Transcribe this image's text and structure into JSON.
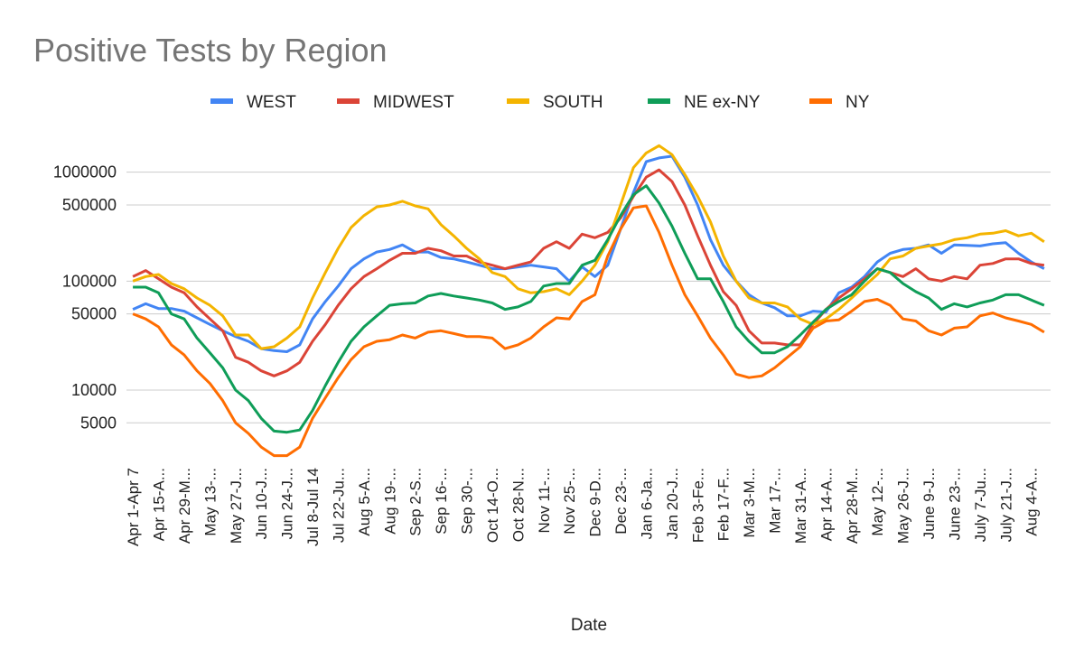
{
  "chart_data": {
    "type": "line",
    "title": "Positive Tests by Region",
    "x_label": "Date",
    "log_scale": true,
    "grid": true,
    "legend": "top",
    "categories": [
      "Apr 1-Apr 7",
      null,
      "Apr 15-A...",
      null,
      "Apr 29-M...",
      null,
      "May 13-...",
      null,
      "May 27-J...",
      null,
      "Jun 10-J...",
      null,
      "Jun 24-J...",
      null,
      "Jul 8-Jul 14",
      null,
      "Jul 22-Ju...",
      null,
      "Aug 5-A...",
      null,
      "Aug 19-...",
      null,
      "Sep 2-S...",
      null,
      "Sep 16-...",
      null,
      "Sep 30-...",
      null,
      "Oct 14-O...",
      null,
      "Oct 28-N...",
      null,
      "Nov 11-...",
      null,
      "Nov 25-...",
      null,
      "Dec 9-D...",
      null,
      "Dec 23-...",
      null,
      "Jan 6-Ja...",
      null,
      "Jan 20-J...",
      null,
      "Feb 3-Fe...",
      null,
      "Feb 17-F...",
      null,
      "Mar 3-M...",
      null,
      "Mar 17-...",
      null,
      "Mar 31-A...",
      null,
      "Apr 14-A...",
      null,
      "Apr 28-M...",
      null,
      "May 12-...",
      null,
      "May 26-J...",
      null,
      "June 9-J...",
      null,
      "June 23-...",
      null,
      "July 7-Ju...",
      null,
      "July 21-J...",
      null,
      "Aug 4-A...",
      null
    ],
    "ylim": [
      2300,
      2300000
    ],
    "yticks": [
      5000,
      10000,
      50000,
      100000,
      500000,
      1000000
    ],
    "series": [
      {
        "name": "WEST",
        "color": "#4285f4",
        "values": [
          55000,
          62000,
          56000,
          56000,
          53000,
          46000,
          40000,
          35000,
          31000,
          28000,
          24000,
          23000,
          22500,
          26000,
          45000,
          65000,
          90000,
          130000,
          160000,
          185000,
          195000,
          215000,
          185000,
          185000,
          165000,
          160000,
          150000,
          140000,
          130000,
          130000,
          135000,
          140000,
          135000,
          130000,
          100000,
          135000,
          110000,
          140000,
          300000,
          650000,
          1250000,
          1350000,
          1400000,
          900000,
          500000,
          240000,
          140000,
          100000,
          75000,
          63000,
          57000,
          48000,
          48000,
          53000,
          52000,
          78000,
          88000,
          110000,
          150000,
          180000,
          195000,
          200000,
          215000,
          180000,
          215000,
          213000,
          210000,
          220000,
          225000,
          180000,
          150000,
          130000
        ]
      },
      {
        "name": "MIDWEST",
        "color": "#db4437",
        "values": [
          110000,
          125000,
          105000,
          88000,
          78000,
          58000,
          45000,
          35000,
          20000,
          18000,
          15000,
          13500,
          15000,
          18000,
          28000,
          40000,
          60000,
          85000,
          110000,
          130000,
          155000,
          180000,
          180000,
          200000,
          190000,
          170000,
          170000,
          150000,
          140000,
          130000,
          140000,
          150000,
          200000,
          230000,
          200000,
          270000,
          250000,
          280000,
          380000,
          600000,
          900000,
          1050000,
          820000,
          500000,
          260000,
          140000,
          80000,
          60000,
          35000,
          27000,
          27000,
          26000,
          26000,
          40000,
          55000,
          70000,
          85000,
          105000,
          130000,
          120000,
          110000,
          130000,
          105000,
          100000,
          110000,
          105000,
          140000,
          145000,
          160000,
          160000,
          145000,
          140000
        ]
      },
      {
        "name": "SOUTH",
        "color": "#f4b400",
        "values": [
          100000,
          110000,
          115000,
          95000,
          85000,
          70000,
          60000,
          48000,
          32000,
          32000,
          24000,
          25000,
          30000,
          38000,
          70000,
          120000,
          200000,
          310000,
          400000,
          480000,
          500000,
          540000,
          490000,
          460000,
          330000,
          260000,
          200000,
          160000,
          120000,
          110000,
          85000,
          78000,
          80000,
          85000,
          75000,
          100000,
          140000,
          230000,
          500000,
          1100000,
          1500000,
          1750000,
          1450000,
          950000,
          600000,
          350000,
          170000,
          100000,
          70000,
          63000,
          63000,
          58000,
          45000,
          40000,
          45000,
          55000,
          70000,
          90000,
          115000,
          160000,
          170000,
          200000,
          210000,
          220000,
          240000,
          250000,
          270000,
          275000,
          290000,
          260000,
          275000,
          230000
        ]
      },
      {
        "name": "NE ex-NY",
        "color": "#0f9d58",
        "values": [
          88000,
          88000,
          78000,
          50000,
          45000,
          30000,
          22000,
          16000,
          10000,
          8000,
          5500,
          4200,
          4100,
          4300,
          6500,
          11000,
          18000,
          28000,
          38000,
          48000,
          60000,
          62000,
          63000,
          73000,
          77000,
          73000,
          70000,
          67000,
          63000,
          55000,
          58000,
          65000,
          90000,
          95000,
          95000,
          140000,
          155000,
          240000,
          400000,
          620000,
          750000,
          520000,
          320000,
          180000,
          105000,
          105000,
          65000,
          38000,
          28000,
          22000,
          22000,
          25000,
          32000,
          42000,
          55000,
          65000,
          75000,
          100000,
          130000,
          120000,
          95000,
          80000,
          70000,
          55000,
          62000,
          58000,
          63000,
          67000,
          75000,
          75000,
          67000,
          60000
        ]
      },
      {
        "name": "NY",
        "color": "#ff6d01",
        "values": [
          50000,
          45000,
          38000,
          26000,
          21000,
          15000,
          11500,
          8000,
          5000,
          4000,
          3000,
          2500,
          2500,
          3000,
          5500,
          8500,
          13000,
          19000,
          25000,
          28000,
          29000,
          32000,
          30000,
          34000,
          35000,
          33000,
          31000,
          31000,
          30000,
          24000,
          26000,
          30000,
          38000,
          46000,
          45000,
          65000,
          75000,
          170000,
          300000,
          470000,
          490000,
          280000,
          140000,
          75000,
          48000,
          30000,
          21000,
          14000,
          13000,
          13500,
          16000,
          20000,
          25000,
          37000,
          43000,
          44000,
          53000,
          65000,
          68000,
          60000,
          45000,
          43000,
          35000,
          32000,
          37000,
          38000,
          48000,
          51000,
          46000,
          43000,
          40000,
          34000
        ]
      }
    ]
  }
}
